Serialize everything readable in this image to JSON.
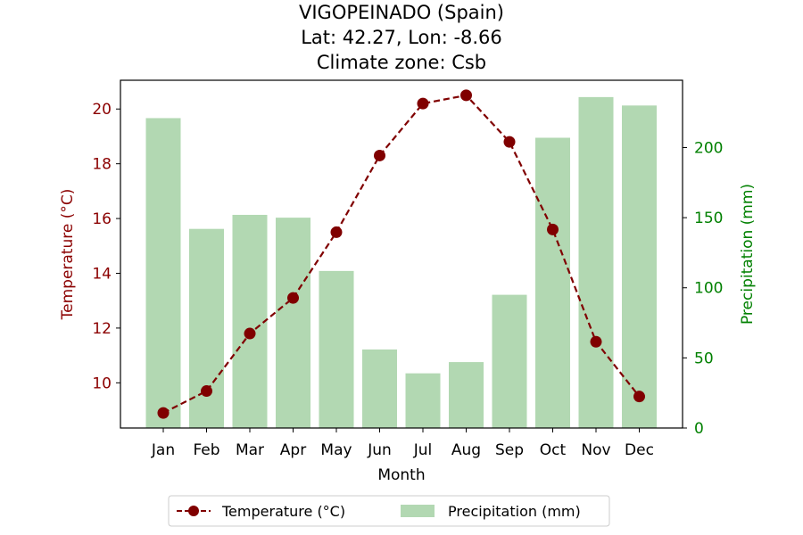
{
  "chart_data": {
    "type": "bar+line",
    "title": [
      "VIGOPEINADO (Spain)",
      "Lat: 42.27, Lon: -8.66",
      "Climate zone: Csb"
    ],
    "xlabel": "Month",
    "categories": [
      "Jan",
      "Feb",
      "Mar",
      "Apr",
      "May",
      "Jun",
      "Jul",
      "Aug",
      "Sep",
      "Oct",
      "Nov",
      "Dec"
    ],
    "series": [
      {
        "name": "Temperature (°C)",
        "type": "line",
        "axis": "left",
        "color": "#800000",
        "values": [
          8.9,
          9.7,
          11.8,
          13.1,
          15.5,
          18.3,
          20.2,
          20.5,
          18.8,
          15.6,
          11.5,
          9.5
        ]
      },
      {
        "name": "Precipitation (mm)",
        "type": "bar",
        "axis": "right",
        "color": "#b2d8b2",
        "values": [
          221,
          142,
          152,
          150,
          112,
          56,
          39,
          47,
          95,
          207,
          236,
          230
        ]
      }
    ],
    "y_left": {
      "label": "Temperature (°C)",
      "color": "#8b0000",
      "ylim": [
        8.35,
        21.05
      ],
      "ticks": [
        10,
        12,
        14,
        16,
        18,
        20
      ]
    },
    "y_right": {
      "label": "Precipitation (mm)",
      "color": "#008000",
      "ylim": [
        0,
        248
      ],
      "ticks": [
        0,
        50,
        100,
        150,
        200
      ]
    },
    "grid": false,
    "legend_position": "bottom-center"
  }
}
